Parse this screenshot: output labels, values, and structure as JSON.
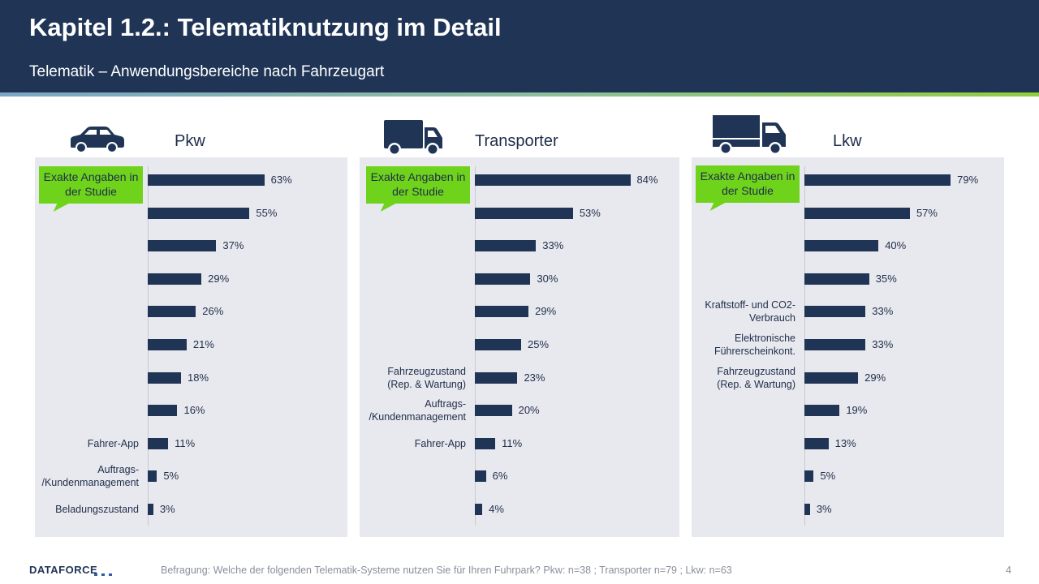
{
  "header": {
    "title": "Kapitel 1.2.: Telematiknutzung im Detail",
    "subtitle": "Telematik – Anwendungsbereiche nach Fahrzeugart"
  },
  "badge_text": "Exakte Angaben in der Studie",
  "chart_data": [
    {
      "type": "bar",
      "orientation": "horizontal",
      "title": "Pkw",
      "icon": "car-icon",
      "xlim": [
        0,
        100
      ],
      "values": [
        63,
        55,
        37,
        29,
        26,
        21,
        18,
        16,
        11,
        5,
        3
      ],
      "value_labels": [
        "63%",
        "55%",
        "37%",
        "29%",
        "26%",
        "21%",
        "18%",
        "16%",
        "11%",
        "5%",
        "3%"
      ],
      "categories": [
        "",
        "",
        "",
        "",
        "",
        "",
        "",
        "",
        "Fahrer-App",
        "Auftrags-\n/Kundenmanagement",
        "Beladungszustand"
      ]
    },
    {
      "type": "bar",
      "orientation": "horizontal",
      "title": "Transporter",
      "icon": "van-icon",
      "xlim": [
        0,
        100
      ],
      "values": [
        84,
        53,
        33,
        30,
        29,
        25,
        23,
        20,
        11,
        6,
        4
      ],
      "value_labels": [
        "84%",
        "53%",
        "33%",
        "30%",
        "29%",
        "25%",
        "23%",
        "20%",
        "11%",
        "6%",
        "4%"
      ],
      "categories": [
        "",
        "",
        "",
        "",
        "",
        "",
        "Fahrzeugzustand\n(Rep. & Wartung)",
        "Auftrags-\n/Kundenmanagement",
        "Fahrer-App",
        "",
        ""
      ]
    },
    {
      "type": "bar",
      "orientation": "horizontal",
      "title": "Lkw",
      "icon": "truck-icon",
      "xlim": [
        0,
        100
      ],
      "values": [
        79,
        57,
        40,
        35,
        33,
        33,
        29,
        19,
        13,
        5,
        3
      ],
      "value_labels": [
        "79%",
        "57%",
        "40%",
        "35%",
        "33%",
        "33%",
        "29%",
        "19%",
        "13%",
        "5%",
        "3%"
      ],
      "categories": [
        "",
        "",
        "",
        "",
        "Kraftstoff- und CO2-\nVerbrauch",
        "Elektronische\nFührerscheinkont.",
        "Fahrzeugzustand\n(Rep. & Wartung)",
        "",
        "",
        "",
        ""
      ]
    }
  ],
  "footer": {
    "logo": "DATAFORCE",
    "note": "Befragung: Welche der folgenden Telematik-Systeme nutzen Sie für Ihren Fuhrpark? Pkw: n=38 ; Transporter n=79 ; Lkw: n=63",
    "page": "4"
  },
  "colors": {
    "header_bg": "#203556",
    "bar": "#203556",
    "panel_bg": "#e8e9ee",
    "badge": "#6fd31c"
  }
}
